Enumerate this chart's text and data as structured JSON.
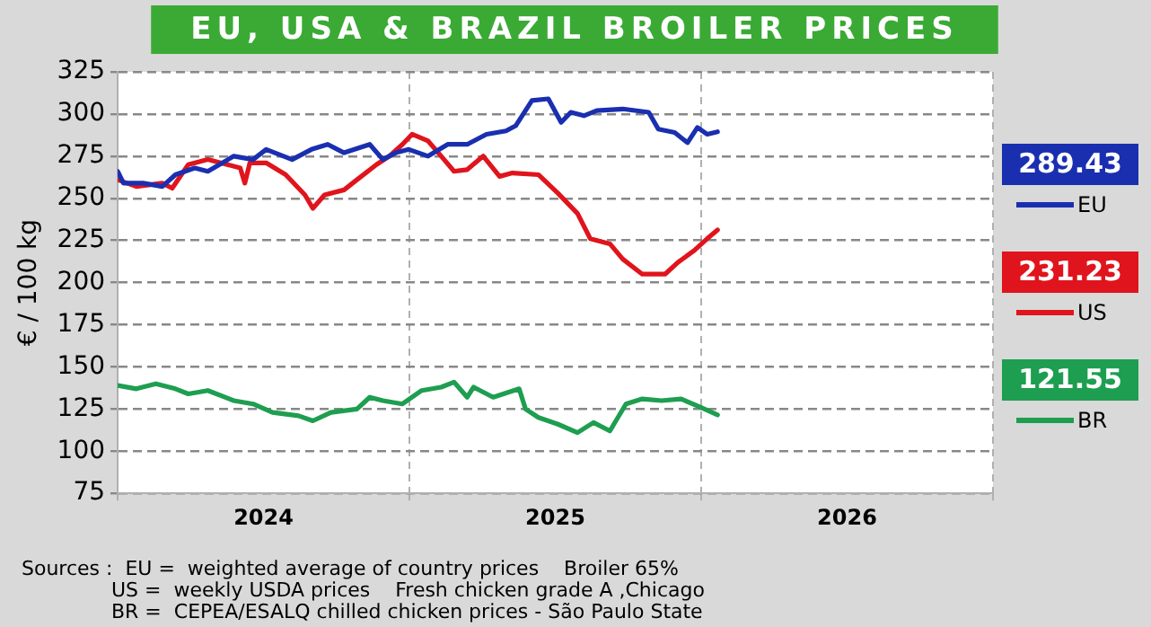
{
  "chart_data": {
    "type": "line",
    "title": "EU, USA & BRAZIL BROILER PRICES",
    "ylabel": "€ / 100 kg",
    "xlim": [
      2024,
      2027
    ],
    "xticks": [
      {
        "value": 2024,
        "label": null
      },
      {
        "value": 2024.5,
        "label": "2024"
      },
      {
        "value": 2025,
        "label": null
      },
      {
        "value": 2025.5,
        "label": "2025"
      },
      {
        "value": 2026,
        "label": null
      },
      {
        "value": 2026.5,
        "label": "2026"
      },
      {
        "value": 2027,
        "label": null
      }
    ],
    "ylim": [
      75,
      325
    ],
    "yticks": [
      75,
      100,
      125,
      150,
      175,
      200,
      225,
      250,
      275,
      300,
      325
    ],
    "grid": true,
    "legend": "right",
    "series": [
      {
        "name": "EU",
        "color": "#1a2fb0",
        "x": [
          2024,
          2024.02,
          2024.087,
          2024.153,
          2024.198,
          2024.264,
          2024.309,
          2024.398,
          2024.464,
          2024.509,
          2024.598,
          2024.664,
          2024.72,
          2024.776,
          2024.864,
          2024.909,
          2024.953,
          2024.998,
          2025.064,
          2025.131,
          2025.198,
          2025.264,
          2025.331,
          2025.364,
          2025.42,
          2025.476,
          2025.52,
          2025.553,
          2025.598,
          2025.642,
          2025.731,
          2025.82,
          2025.853,
          2025.909,
          2025.953,
          2025.987,
          2026.02,
          2026.056
        ],
        "values": [
          266,
          259,
          259,
          257,
          264,
          268,
          266,
          275,
          273,
          279,
          273,
          279,
          282,
          277,
          282,
          273,
          277,
          279,
          275,
          282,
          282,
          288,
          290,
          293,
          308,
          309,
          295,
          301,
          299,
          302,
          303,
          301,
          291,
          289,
          283,
          292,
          288,
          289.43
        ]
      },
      {
        "name": "US",
        "color": "#e0141c",
        "x": [
          2024,
          2024.064,
          2024.153,
          2024.187,
          2024.242,
          2024.309,
          2024.376,
          2024.42,
          2024.436,
          2024.453,
          2024.509,
          2024.576,
          2024.642,
          2024.669,
          2024.709,
          2024.776,
          2024.82,
          2024.887,
          2024.931,
          2024.976,
          2025.009,
          2025.064,
          2025.109,
          2025.153,
          2025.198,
          2025.253,
          2025.309,
          2025.353,
          2025.442,
          2025.509,
          2025.576,
          2025.62,
          2025.687,
          2025.731,
          2025.798,
          2025.876,
          2025.92,
          2025.976,
          2026.02,
          2026.056
        ],
        "values": [
          261,
          257,
          259,
          256,
          270,
          273,
          270,
          268,
          259,
          271,
          271,
          264,
          252,
          244,
          252,
          255,
          261,
          270,
          275,
          282,
          288,
          284,
          275,
          266,
          267,
          275,
          263,
          265,
          264,
          253,
          241,
          226,
          223,
          214,
          205,
          205,
          212,
          219,
          226,
          231.23
        ]
      },
      {
        "name": "BR",
        "color": "#1e9e50",
        "x": [
          2024,
          2024.064,
          2024.131,
          2024.198,
          2024.242,
          2024.309,
          2024.398,
          2024.464,
          2024.531,
          2024.62,
          2024.669,
          2024.731,
          2024.82,
          2024.864,
          2024.909,
          2024.976,
          2025.042,
          2025.109,
          2025.153,
          2025.198,
          2025.22,
          2025.287,
          2025.376,
          2025.398,
          2025.442,
          2025.509,
          2025.576,
          2025.631,
          2025.687,
          2025.742,
          2025.798,
          2025.864,
          2025.931,
          2025.998,
          2026.056
        ],
        "values": [
          139,
          137,
          140,
          137,
          134,
          136,
          130,
          128,
          123,
          121,
          118,
          123,
          125,
          132,
          130,
          128,
          136,
          138,
          141,
          132,
          138,
          132,
          137,
          125,
          120,
          116,
          111,
          117,
          112,
          128,
          131,
          130,
          131,
          126,
          121.55
        ]
      }
    ],
    "annotations": [
      "289.43",
      "231.23",
      "121.55",
      "Sources :  EU =  weighted average of country prices    Broiler 65%",
      "US =  weekly USDA prices    Fresh chicken grade A ,Chicago",
      "BR =  CEPEA/ESALQ chilled chicken prices - São Paulo State"
    ]
  }
}
